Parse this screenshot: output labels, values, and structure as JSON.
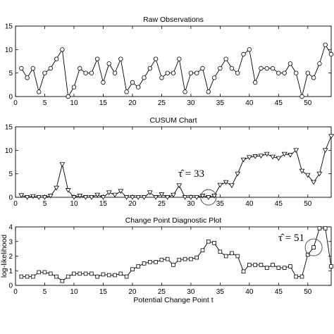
{
  "chart_data": [
    {
      "type": "line",
      "title": "Raw Observations",
      "xlabel": "",
      "ylabel": "",
      "xlim": [
        0,
        54
      ],
      "ylim": [
        0,
        15
      ],
      "xticks": [
        0,
        5,
        10,
        15,
        20,
        25,
        30,
        35,
        40,
        45,
        50
      ],
      "yticks": [
        0,
        5,
        10,
        15
      ],
      "marker": "circle",
      "grid": false,
      "x": [
        1,
        2,
        3,
        4,
        5,
        6,
        7,
        8,
        9,
        10,
        11,
        12,
        13,
        14,
        15,
        16,
        17,
        18,
        19,
        20,
        21,
        22,
        23,
        24,
        25,
        26,
        27,
        28,
        29,
        30,
        31,
        32,
        33,
        34,
        35,
        36,
        37,
        38,
        39,
        40,
        41,
        42,
        43,
        44,
        45,
        46,
        47,
        48,
        49,
        50,
        51,
        52,
        53,
        54
      ],
      "values": [
        6,
        4,
        6,
        1,
        5,
        6,
        8,
        10,
        0,
        2,
        6,
        5,
        5,
        8,
        3,
        7,
        5,
        8,
        1,
        3,
        2,
        4,
        6,
        8,
        4,
        5,
        5,
        8,
        1,
        5,
        5,
        6,
        1,
        4,
        6,
        8,
        6,
        5,
        9,
        10,
        3,
        6,
        6,
        6,
        5,
        5,
        7,
        5,
        0,
        5,
        4,
        7,
        11,
        9
      ]
    },
    {
      "type": "line",
      "title": "CUSUM Chart",
      "xlabel": "",
      "ylabel": "",
      "xlim": [
        0,
        54
      ],
      "ylim": [
        0,
        15
      ],
      "xticks": [
        0,
        5,
        10,
        15,
        20,
        25,
        30,
        35,
        40,
        45,
        50
      ],
      "yticks": [
        0,
        5,
        10,
        15
      ],
      "marker": "triangle-down",
      "grid": false,
      "x": [
        1,
        2,
        3,
        4,
        5,
        6,
        7,
        8,
        9,
        10,
        11,
        12,
        13,
        14,
        15,
        16,
        17,
        18,
        19,
        20,
        21,
        22,
        23,
        24,
        25,
        26,
        27,
        28,
        29,
        30,
        31,
        32,
        33,
        34,
        35,
        36,
        37,
        38,
        39,
        40,
        41,
        42,
        43,
        44,
        45,
        46,
        47,
        48,
        49,
        50,
        51,
        52,
        53,
        54
      ],
      "values": [
        0.4,
        0,
        0.2,
        0,
        0,
        0.3,
        2,
        7,
        1.5,
        0,
        0.3,
        0,
        0,
        0.5,
        0,
        1,
        0.5,
        1.3,
        0,
        0,
        0,
        0,
        1,
        0,
        0.6,
        0,
        0.5,
        2.5,
        0,
        0,
        0,
        0.3,
        0,
        0.3,
        2.6,
        3.2,
        2.5,
        5,
        8,
        8.5,
        8.7,
        8.8,
        9.2,
        8.6,
        8.3,
        9.2,
        9,
        10,
        5.6,
        4.7,
        3.2,
        5,
        10,
        13
      ],
      "annotations": [
        {
          "label": "τ̂ = 33",
          "x": 33
        }
      ]
    },
    {
      "type": "line",
      "title": "Change Point Diagnostic Plot",
      "xlabel": "Potential Change Point t",
      "ylabel": "log-likelihood",
      "xlim": [
        0,
        54
      ],
      "ylim": [
        0,
        4
      ],
      "xticks": [
        0,
        5,
        10,
        15,
        20,
        25,
        30,
        35,
        40,
        45,
        50
      ],
      "yticks": [
        0,
        1,
        2,
        3,
        4
      ],
      "marker": "square",
      "grid": false,
      "x": [
        1,
        2,
        3,
        4,
        5,
        6,
        7,
        8,
        9,
        10,
        11,
        12,
        13,
        14,
        15,
        16,
        17,
        18,
        19,
        20,
        21,
        22,
        23,
        24,
        25,
        26,
        27,
        28,
        29,
        30,
        31,
        32,
        33,
        34,
        35,
        36,
        37,
        38,
        39,
        40,
        41,
        42,
        43,
        44,
        45,
        46,
        47,
        48,
        49,
        50,
        51,
        52,
        53,
        54
      ],
      "values": [
        0.6,
        0.6,
        0.6,
        0.9,
        0.9,
        0.8,
        0.6,
        0.3,
        0.6,
        0.8,
        0.8,
        0.8,
        0.8,
        0.6,
        0.75,
        0.7,
        0.7,
        0.8,
        0.6,
        1.1,
        1.3,
        1.5,
        1.6,
        1.6,
        1.75,
        1.8,
        1.4,
        1.75,
        1.8,
        1.8,
        1.9,
        2.4,
        3.0,
        2.9,
        2.3,
        2.0,
        2.2,
        2.0,
        0.95,
        1.4,
        1.4,
        1.4,
        1.2,
        1.4,
        1.2,
        1.2,
        1.3,
        0.6,
        0.6,
        2.1,
        2.6,
        3.9,
        3.9,
        1.3
      ],
      "annotations": [
        {
          "label": "τ̂ = 51",
          "x": 51
        }
      ]
    }
  ]
}
